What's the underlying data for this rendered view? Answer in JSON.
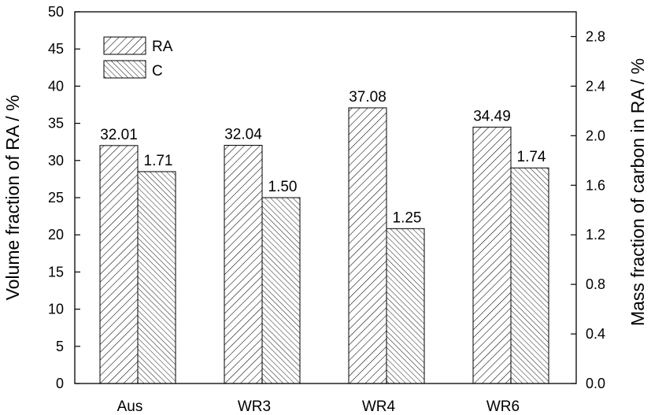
{
  "chart_data": {
    "type": "bar",
    "categories": [
      "Aus",
      "WR3",
      "WR4",
      "WR6"
    ],
    "series": [
      {
        "name": "RA",
        "axis": "left",
        "values": [
          32.01,
          32.04,
          37.08,
          34.49
        ],
        "labels": [
          "32.01",
          "32.04",
          "37.08",
          "34.49"
        ],
        "pattern": "hatch-forward"
      },
      {
        "name": "C",
        "axis": "right",
        "values": [
          1.71,
          1.5,
          1.25,
          1.74
        ],
        "labels": [
          "1.71",
          "1.50",
          "1.25",
          "1.74"
        ],
        "pattern": "hatch-backward"
      }
    ],
    "ylabel": "Volume fraction of RA / %",
    "y2label": "Mass fraction of carbon in RA / %",
    "ylim": [
      0,
      50
    ],
    "y2lim": [
      0,
      3.0
    ],
    "yticks": [
      "0",
      "5",
      "10",
      "15",
      "20",
      "25",
      "30",
      "35",
      "40",
      "45",
      "50"
    ],
    "y2ticks": [
      "0.0",
      "0.4",
      "0.8",
      "1.2",
      "1.6",
      "2.0",
      "2.4",
      "2.8"
    ],
    "legend_position": "top-left",
    "grid": false,
    "colors": {
      "bar_fill": "#ffffff",
      "hatch": "#000000",
      "axis": "#000000"
    }
  }
}
